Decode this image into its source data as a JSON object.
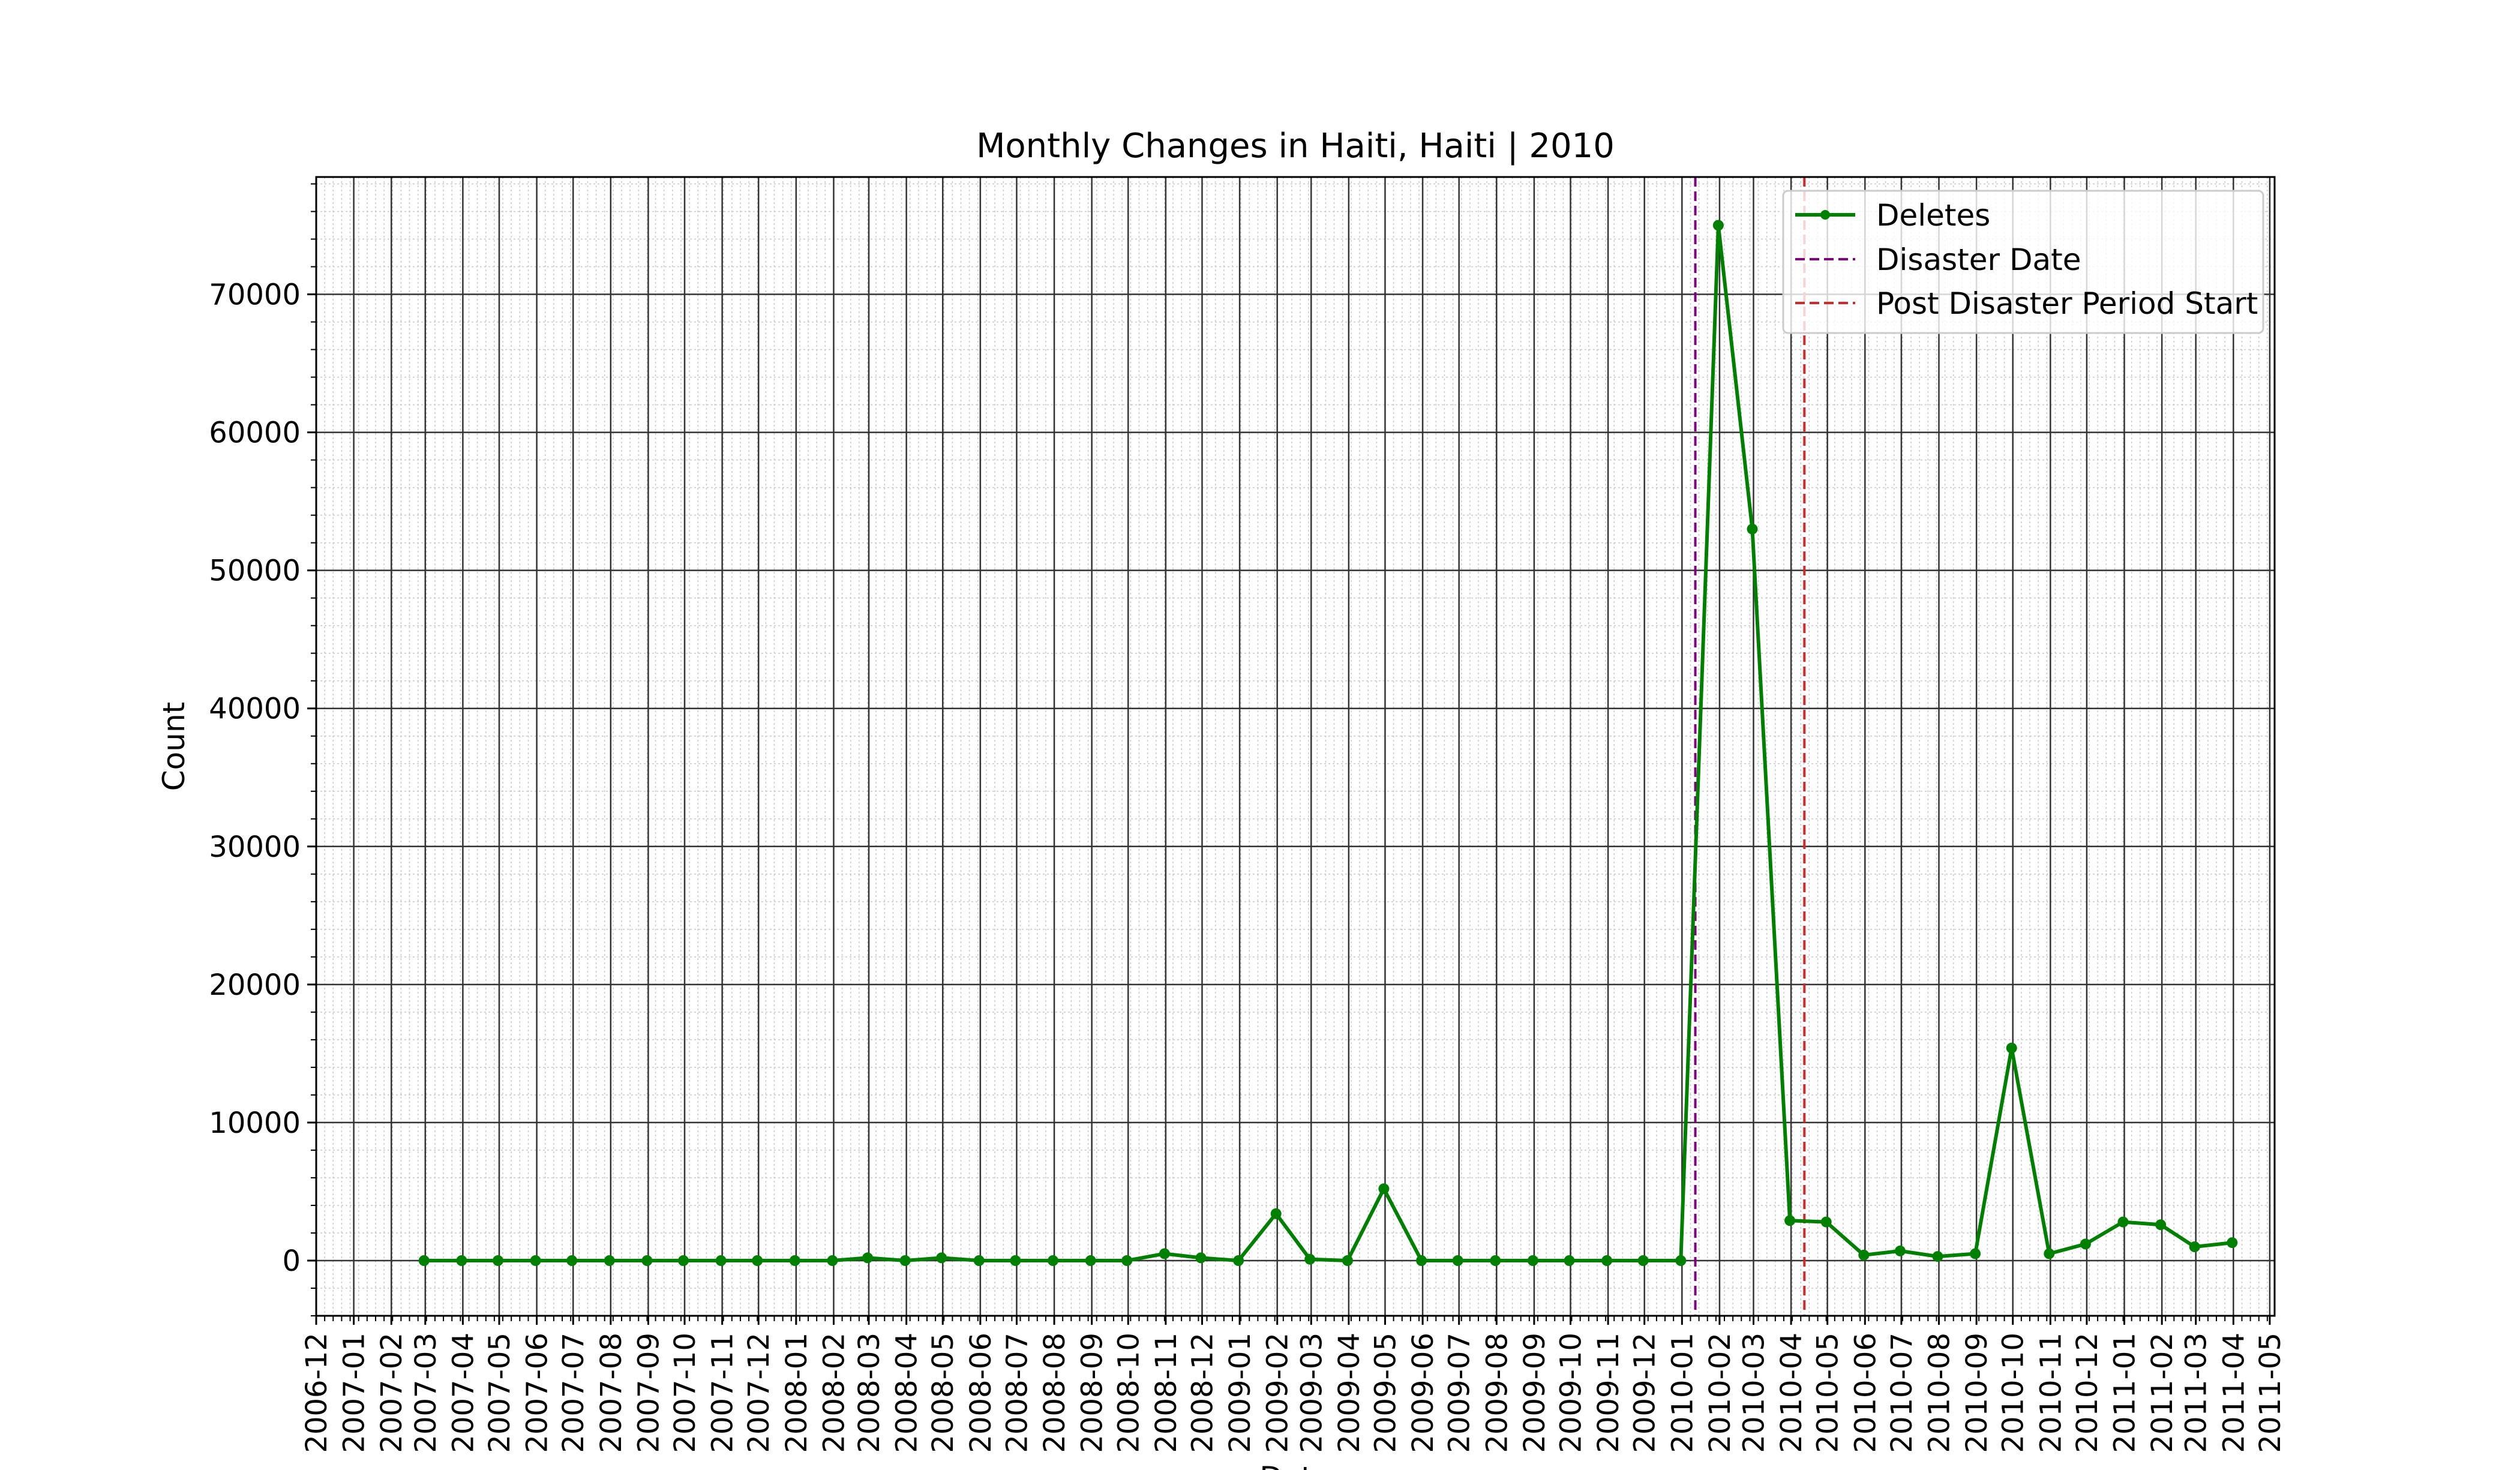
{
  "chart_data": {
    "type": "line",
    "title": "Monthly Changes in Haiti, Haiti | 2010",
    "xlabel": "Date",
    "ylabel": "Count",
    "ylim": [
      -4000,
      78500
    ],
    "yticks": [
      0,
      10000,
      20000,
      30000,
      40000,
      50000,
      60000,
      70000
    ],
    "ytick_labels": [
      "0",
      "10000",
      "20000",
      "30000",
      "40000",
      "50000",
      "60000",
      "70000"
    ],
    "xlim": [
      "2006-12-01",
      "2011-05-05"
    ],
    "xtick_labels": [
      "2006-12",
      "2007-01",
      "2007-02",
      "2007-03",
      "2007-04",
      "2007-05",
      "2007-06",
      "2007-07",
      "2007-08",
      "2007-09",
      "2007-10",
      "2007-11",
      "2007-12",
      "2008-01",
      "2008-02",
      "2008-03",
      "2008-04",
      "2008-05",
      "2008-06",
      "2008-07",
      "2008-08",
      "2008-09",
      "2008-10",
      "2008-11",
      "2008-12",
      "2009-01",
      "2009-02",
      "2009-03",
      "2009-04",
      "2009-05",
      "2009-06",
      "2009-07",
      "2009-08",
      "2009-09",
      "2009-10",
      "2009-11",
      "2009-12",
      "2010-01",
      "2010-02",
      "2010-03",
      "2010-04",
      "2010-05",
      "2010-06",
      "2010-07",
      "2010-08",
      "2010-09",
      "2010-10",
      "2010-11",
      "2010-12",
      "2011-01",
      "2011-02",
      "2011-03",
      "2011-04",
      "2011-05"
    ],
    "grid": true,
    "legend_position": "top-right",
    "series": [
      {
        "name": "Deletes",
        "color": "#008000",
        "x": [
          "2007-02-28",
          "2007-03-31",
          "2007-04-30",
          "2007-05-31",
          "2007-06-30",
          "2007-07-31",
          "2007-08-31",
          "2007-09-30",
          "2007-10-31",
          "2007-11-30",
          "2007-12-31",
          "2008-01-31",
          "2008-02-29",
          "2008-03-31",
          "2008-04-30",
          "2008-05-31",
          "2008-06-30",
          "2008-07-31",
          "2008-08-31",
          "2008-09-30",
          "2008-10-31",
          "2008-11-30",
          "2008-12-31",
          "2009-01-31",
          "2009-02-28",
          "2009-03-31",
          "2009-04-30",
          "2009-05-31",
          "2009-06-30",
          "2009-07-31",
          "2009-08-31",
          "2009-09-30",
          "2009-10-31",
          "2009-11-30",
          "2009-12-31",
          "2010-01-31",
          "2010-02-28",
          "2010-03-31",
          "2010-04-30",
          "2010-05-31",
          "2010-06-30",
          "2010-07-31",
          "2010-08-31",
          "2010-09-30",
          "2010-10-31",
          "2010-11-30",
          "2010-12-31",
          "2011-01-31",
          "2011-02-28",
          "2011-03-31"
        ],
        "y": [
          0,
          0,
          0,
          0,
          0,
          0,
          0,
          0,
          0,
          0,
          0,
          0,
          200,
          0,
          200,
          0,
          0,
          0,
          0,
          0,
          500,
          200,
          0,
          3400,
          100,
          0,
          5200,
          0,
          0,
          0,
          0,
          0,
          0,
          0,
          0,
          75000,
          53000,
          2900,
          2800,
          400,
          700,
          300,
          500,
          15400,
          500,
          1200,
          2800,
          2600,
          1000,
          1300
        ]
      }
    ],
    "vlines": [
      {
        "name": "Disaster Date",
        "x": "2010-01-12",
        "color": "#800080"
      },
      {
        "name": "Post Disaster Period Start",
        "x": "2010-04-12",
        "color": "#d62728"
      }
    ]
  }
}
